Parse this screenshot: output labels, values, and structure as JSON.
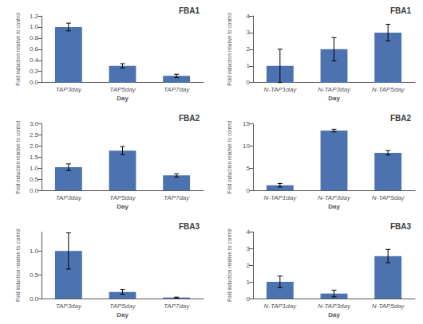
{
  "chart_data": [
    {
      "type": "bar",
      "title": "FBA1",
      "categories": [
        "TAP3day",
        "TAP5day",
        "TAP7day"
      ],
      "values": [
        1.0,
        0.3,
        0.12
      ],
      "errors": [
        0.07,
        0.04,
        0.03
      ],
      "color": "#4C72B0",
      "xlabel": "Day",
      "ylabel": "Fold induction relative to control",
      "ylim": [
        0,
        1.2
      ],
      "yticks": [
        {
          "value": 0,
          "label": "0.0"
        },
        0.2,
        0.4,
        0.6,
        0.8,
        {
          "value": 1,
          "label": "1.0"
        },
        1.2
      ],
      "grid": false
    },
    {
      "type": "bar",
      "title": "FBA1",
      "categories": [
        "N-TAP1day",
        "N-TAP3day",
        "N-TAP5day"
      ],
      "values": [
        1.0,
        2.0,
        3.0
      ],
      "errors": [
        1.0,
        0.7,
        0.5
      ],
      "color": "#4C72B0",
      "xlabel": "Day",
      "ylabel": "Fold induction relative to control",
      "ylim": [
        0,
        4.0
      ],
      "yticks": [
        0,
        1,
        2,
        3,
        4
      ],
      "grid": false
    },
    {
      "type": "bar",
      "title": "FBA2",
      "categories": [
        "TAP3day",
        "TAP5day",
        "TAP7day"
      ],
      "values": [
        1.05,
        1.8,
        0.68
      ],
      "errors": [
        0.15,
        0.18,
        0.07
      ],
      "color": "#4C72B0",
      "xlabel": "Day",
      "ylabel": "Fold induction relative to control",
      "ylim": [
        0,
        3.0
      ],
      "yticks": [
        {
          "value": 0,
          "label": "0.0"
        },
        0.5,
        {
          "value": 1,
          "label": "1.0"
        },
        1.5,
        {
          "value": 2,
          "label": "2.0"
        },
        2.5,
        {
          "value": 3,
          "label": "3.0"
        }
      ],
      "grid": false
    },
    {
      "type": "bar",
      "title": "FBA2",
      "categories": [
        "N-TAP1day",
        "N-TAP3day",
        "N-TAP5day"
      ],
      "values": [
        1.2,
        13.5,
        8.5
      ],
      "errors": [
        0.4,
        0.3,
        0.5
      ],
      "color": "#4C72B0",
      "xlabel": "Day",
      "ylabel": "Fold induction relative to control",
      "ylim": [
        0,
        15.0
      ],
      "yticks": [
        0,
        5,
        10,
        15
      ],
      "grid": false
    },
    {
      "type": "bar",
      "title": "FBA3",
      "categories": [
        "TAP3day",
        "TAP5day",
        "TAP7day"
      ],
      "values": [
        1.0,
        0.14,
        0.02
      ],
      "errors": [
        0.38,
        0.05,
        0.01
      ],
      "color": "#4C72B0",
      "xlabel": "Day",
      "ylabel": "Fold induction relative to control",
      "ylim": [
        0,
        1.4
      ],
      "yticks": [
        {
          "value": 0,
          "label": "0.0"
        },
        0.5,
        {
          "value": 1,
          "label": "1.0"
        }
      ],
      "grid": false
    },
    {
      "type": "bar",
      "title": "FBA3",
      "categories": [
        "N-TAP1day",
        "N-TAP3day",
        "N-TAP5day"
      ],
      "values": [
        1.0,
        0.3,
        2.55
      ],
      "errors": [
        0.35,
        0.2,
        0.4
      ],
      "color": "#4C72B0",
      "xlabel": "Day",
      "ylabel": "Fold induction relative to control",
      "ylim": [
        0,
        4.0
      ],
      "yticks": [
        0,
        1,
        2,
        3,
        4
      ],
      "grid": false
    }
  ]
}
